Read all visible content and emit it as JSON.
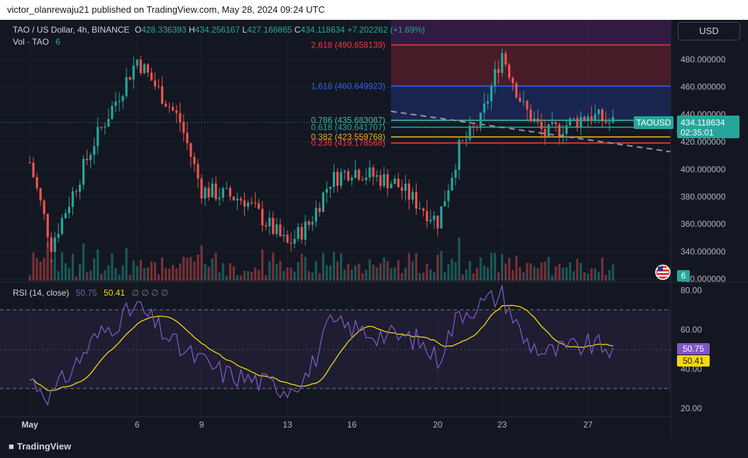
{
  "header": {
    "publisher_text": "victor_olanrewaju21 published on TradingView.com, May 28, 2024 09:24 UTC"
  },
  "legend": {
    "symbol": "TAO / US Dollar, 4h, BINANCE",
    "open_label": "O",
    "open": "428.336393",
    "high_label": "H",
    "high": "434.256167",
    "low_label": "L",
    "low": "427.166865",
    "close_label": "C",
    "close": "434.118634",
    "change": "+7.202262 (+1.69%)",
    "vol_label": "Vol · TAO",
    "vol_value": "6"
  },
  "currency_button": "USD",
  "price_axis": [
    "480.000000",
    "460.000000",
    "440.000000",
    "420.000000",
    "400.000000",
    "380.000000",
    "360.000000",
    "340.000000",
    "320.000000"
  ],
  "time_axis": [
    "May",
    "6",
    "9",
    "13",
    "16",
    "20",
    "23",
    "27"
  ],
  "ticker": {
    "symbol": "TAOUSD",
    "price": "434.118634",
    "countdown": "02:35:01",
    "volume_badge": "6"
  },
  "fib_levels": [
    {
      "label": "2.618 (490.658139)",
      "price": 490.658139,
      "color": "#f23645"
    },
    {
      "label": "1.618 (460.649923)",
      "price": 460.649923,
      "color": "#2962ff"
    },
    {
      "label": "0.786 (435.683087)",
      "price": 435.683087,
      "color": "#4db6ac"
    },
    {
      "label": "0.618 (430.641707)",
      "price": 430.641707,
      "color": "#26a69a"
    },
    {
      "label": "0.382 (423.559768)",
      "price": 423.559768,
      "color": "#f5a623"
    },
    {
      "label": "0.236 (419.178568)",
      "price": 419.178568,
      "color": "#f23645"
    }
  ],
  "rsi": {
    "label": "RSI (14, close)",
    "value": "50.75",
    "ma_value": "50.41",
    "empty_values": "∅ ∅ ∅ ∅",
    "axis": [
      "80.00",
      "60.00",
      "40.00",
      "20.00"
    ],
    "badge_value": "50.75",
    "badge_ma": "50.41"
  },
  "colors": {
    "up": "#26a69a",
    "down": "#ef5350",
    "rsi": "#7e57c2",
    "rsi_ma": "#f5d90a",
    "background": "#131722"
  },
  "footer": {
    "logo_text": "TradingView"
  },
  "chart_data": {
    "type": "candlestick",
    "symbol": "TAOUSD",
    "interval": "4h",
    "ylim": [
      317,
      502
    ],
    "current_price": 434.118634,
    "x_ticks": [
      "May",
      "6",
      "9",
      "13",
      "16",
      "20",
      "23",
      "27"
    ],
    "key_points": [
      {
        "date": "May 1",
        "price": 405
      },
      {
        "date": "May 2",
        "price": 345
      },
      {
        "date": "May 4",
        "price": 420
      },
      {
        "date": "May 6",
        "price": 480
      },
      {
        "date": "May 8",
        "price": 435
      },
      {
        "date": "May 9",
        "price": 385
      },
      {
        "date": "May 11",
        "price": 378
      },
      {
        "date": "May 13",
        "price": 345
      },
      {
        "date": "May 14",
        "price": 360
      },
      {
        "date": "May 15",
        "price": 392
      },
      {
        "date": "May 16",
        "price": 400
      },
      {
        "date": "May 18",
        "price": 390
      },
      {
        "date": "May 20",
        "price": 362
      },
      {
        "date": "May 21",
        "price": 415
      },
      {
        "date": "May 22",
        "price": 435
      },
      {
        "date": "May 23",
        "price": 485
      },
      {
        "date": "May 24",
        "price": 445
      },
      {
        "date": "May 25",
        "price": 425
      },
      {
        "date": "May 27",
        "price": 440
      },
      {
        "date": "May 28",
        "price": 434
      }
    ],
    "rsi_ylim": [
      15,
      83
    ],
    "rsi_levels": [
      70,
      30
    ],
    "rsi_points": [
      {
        "date": "May 1",
        "rsi": 35
      },
      {
        "date": "May 2",
        "rsi": 26
      },
      {
        "date": "May 4",
        "rsi": 55
      },
      {
        "date": "May 6",
        "rsi": 72
      },
      {
        "date": "May 8",
        "rsi": 50
      },
      {
        "date": "May 10",
        "rsi": 38
      },
      {
        "date": "May 13",
        "rsi": 30
      },
      {
        "date": "May 14",
        "rsi": 38
      },
      {
        "date": "May 15",
        "rsi": 63
      },
      {
        "date": "May 17",
        "rsi": 58
      },
      {
        "date": "May 19",
        "rsi": 55
      },
      {
        "date": "May 20",
        "rsi": 45
      },
      {
        "date": "May 21",
        "rsi": 68
      },
      {
        "date": "May 23",
        "rsi": 78
      },
      {
        "date": "May 24",
        "rsi": 55
      },
      {
        "date": "May 25",
        "rsi": 48
      },
      {
        "date": "May 27",
        "rsi": 52
      },
      {
        "date": "May 28",
        "rsi": 50.75
      }
    ]
  }
}
